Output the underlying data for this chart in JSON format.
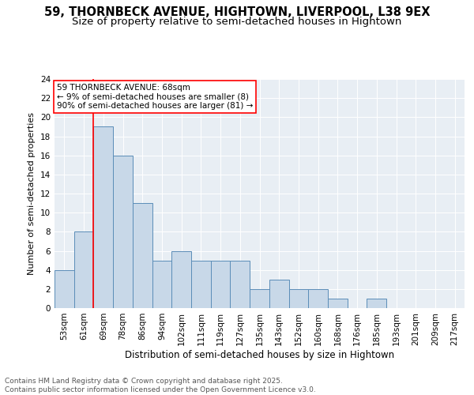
{
  "title_line1": "59, THORNBECK AVENUE, HIGHTOWN, LIVERPOOL, L38 9EX",
  "title_line2": "Size of property relative to semi-detached houses in Hightown",
  "xlabel": "Distribution of semi-detached houses by size in Hightown",
  "ylabel": "Number of semi-detached properties",
  "categories": [
    "53sqm",
    "61sqm",
    "69sqm",
    "78sqm",
    "86sqm",
    "94sqm",
    "102sqm",
    "111sqm",
    "119sqm",
    "127sqm",
    "135sqm",
    "143sqm",
    "152sqm",
    "160sqm",
    "168sqm",
    "176sqm",
    "185sqm",
    "193sqm",
    "201sqm",
    "209sqm",
    "217sqm"
  ],
  "values": [
    4,
    8,
    19,
    16,
    11,
    5,
    6,
    5,
    5,
    5,
    2,
    3,
    2,
    2,
    1,
    0,
    1,
    0,
    0,
    0,
    0
  ],
  "bar_color": "#c8d8e8",
  "bar_edge_color": "#5b8db8",
  "vline_x_index": 2,
  "vline_color": "red",
  "annotation_text": "59 THORNBECK AVENUE: 68sqm\n← 9% of semi-detached houses are smaller (8)\n90% of semi-detached houses are larger (81) →",
  "annotation_box_color": "white",
  "annotation_box_edge_color": "red",
  "ylim": [
    0,
    24
  ],
  "yticks": [
    0,
    2,
    4,
    6,
    8,
    10,
    12,
    14,
    16,
    18,
    20,
    22,
    24
  ],
  "background_color": "#e8eef4",
  "footer_text": "Contains HM Land Registry data © Crown copyright and database right 2025.\nContains public sector information licensed under the Open Government Licence v3.0.",
  "title_fontsize": 10.5,
  "subtitle_fontsize": 9.5,
  "xlabel_fontsize": 8.5,
  "ylabel_fontsize": 8,
  "tick_fontsize": 7.5,
  "annotation_fontsize": 7.5,
  "footer_fontsize": 6.5
}
